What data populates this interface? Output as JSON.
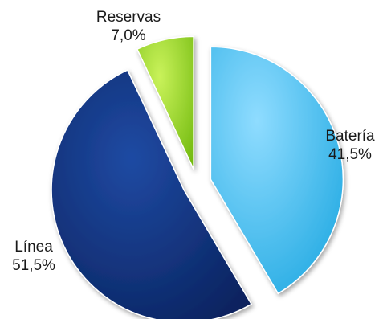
{
  "chart_data": {
    "type": "pie",
    "slices": [
      {
        "name": "Batería",
        "value": 41.5,
        "label": "41,5%",
        "color": "#33b8ea"
      },
      {
        "name": "Línea",
        "value": 51.5,
        "label": "51,5%",
        "color": "#0a2f78"
      },
      {
        "name": "Reservas",
        "value": 7.0,
        "label": "7,0%",
        "color": "#8fd11c"
      }
    ]
  }
}
